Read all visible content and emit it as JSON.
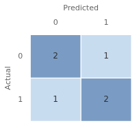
{
  "chart_data": {
    "type": "heatmap",
    "x_label": "Predicted",
    "y_label": "Actual",
    "x_categories": [
      "0",
      "1"
    ],
    "y_categories": [
      "0",
      "1"
    ],
    "cells": [
      [
        2,
        1
      ],
      [
        1,
        2
      ]
    ],
    "colors": [
      [
        "#7A9CC4",
        "#C8DCF0"
      ],
      [
        "#C8DCF0",
        "#7A9CC4"
      ]
    ],
    "data_labels": true,
    "grid": false
  }
}
